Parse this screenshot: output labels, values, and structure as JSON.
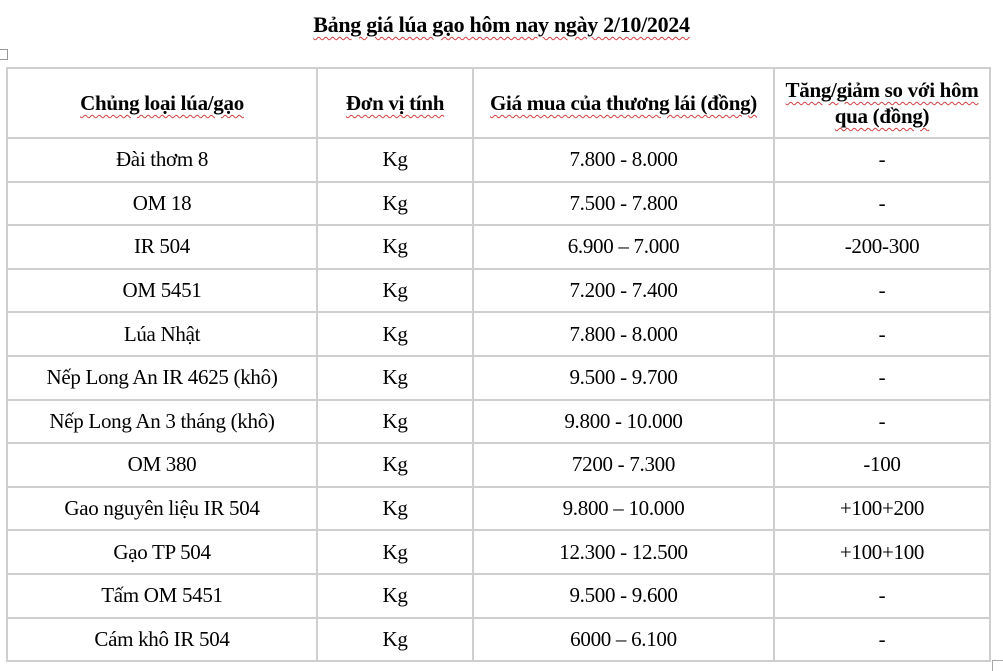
{
  "title": "Bảng giá lúa gạo hôm nay ngày 2/10/2024",
  "table": {
    "headers": [
      "Chủng loại lúa/gạo",
      "Đơn vị tính",
      "Giá mua của thương lái (đồng)",
      "Tăng/giảm so với hôm qua (đồng)"
    ],
    "rows": [
      [
        "Đài thơm 8",
        "Kg",
        "7.800 - 8.000",
        "-"
      ],
      [
        "OM 18",
        "Kg",
        "7.500 - 7.800",
        "-"
      ],
      [
        "IR 504",
        "Kg",
        "6.900 – 7.000",
        "-200-300"
      ],
      [
        "OM 5451",
        "Kg",
        "7.200 - 7.400",
        "-"
      ],
      [
        "Lúa Nhật",
        "Kg",
        "7.800 - 8.000",
        "-"
      ],
      [
        "Nếp Long An IR 4625 (khô)",
        "Kg",
        "9.500 - 9.700",
        "-"
      ],
      [
        "Nếp Long An 3 tháng (khô)",
        "Kg",
        "9.800 - 10.000",
        "-"
      ],
      [
        "OM 380",
        "Kg",
        "7200 - 7.300",
        "-100"
      ],
      [
        "Gao nguyên liệu IR 504",
        "Kg",
        "9.800 – 10.000",
        "+100+200"
      ],
      [
        "Gạo TP 504",
        "Kg",
        "12.300 - 12.500",
        "+100+100"
      ],
      [
        "Tấm OM 5451",
        "Kg",
        "9.500 - 9.600",
        "-"
      ],
      [
        "Cám khô IR 504",
        "Kg",
        "6000 – 6.100",
        "-"
      ]
    ]
  }
}
